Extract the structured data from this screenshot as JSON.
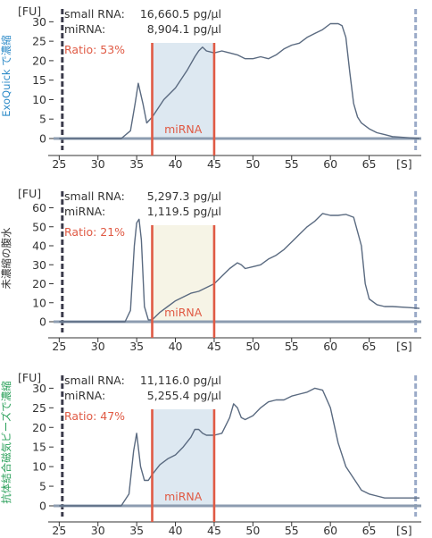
{
  "colors": {
    "trace": "#5a6a80",
    "axis": "#8c9cb0",
    "leftmarker": "#3a3a4a",
    "rightmarker": "#9aaac8",
    "window_line": "#e05a44",
    "ratio_text": "#e05a44",
    "label_blue": "#2e8bc8",
    "label_black": "#333333",
    "label_green": "#2aa05a",
    "fill_blue": "#dde8f1",
    "fill_cream": "#f6f4e6"
  },
  "chart_data": [
    {
      "type": "line",
      "side_label": "ExoQuick で濃縮",
      "side_label_color": "#2e8bc8",
      "yunit": "[FU]",
      "xunit": "[S]",
      "xlim": [
        24.5,
        71.5
      ],
      "ylim": [
        0,
        31
      ],
      "xticks": [
        25,
        30,
        35,
        40,
        45,
        50,
        55,
        60,
        65
      ],
      "yticks": [
        0,
        5,
        10,
        15,
        20,
        25,
        30
      ],
      "left_marker_x": 25.4,
      "right_marker_x": 71.0,
      "window": [
        37,
        45
      ],
      "window_fill": "#dde8f1",
      "window_label": "miRNA",
      "annotations": [
        {
          "label": "small RNA:",
          "value": "16,660.5 pg/μl"
        },
        {
          "label": "miRNA:",
          "value": "8,904.1 pg/μl"
        }
      ],
      "ratio": "Ratio: 53%",
      "series": [
        {
          "x": [
            25,
            33,
            34.2,
            34.8,
            35.2,
            35.8,
            36.3,
            37,
            37.5,
            38.5,
            40,
            41.5,
            42.5,
            43,
            43.5,
            44,
            45,
            46,
            47,
            48,
            49,
            50,
            51,
            52,
            53,
            54,
            55,
            56,
            57,
            58,
            59,
            60,
            61,
            61.5,
            62,
            62.5,
            63,
            63.5,
            64,
            65,
            66,
            67,
            68,
            70,
            71.5
          ],
          "y": [
            0,
            0,
            2,
            9,
            14.2,
            9,
            4,
            5.5,
            7,
            10,
            13,
            17.5,
            21,
            22.5,
            23.5,
            22.5,
            22,
            22.5,
            22,
            21.5,
            20.5,
            20.5,
            21,
            20.5,
            21.5,
            23,
            24,
            24.5,
            26,
            27,
            28,
            29.5,
            29.5,
            29,
            26,
            17,
            9,
            5.5,
            4,
            2.5,
            1.5,
            1,
            0.5,
            0.2,
            0
          ]
        }
      ]
    },
    {
      "type": "line",
      "side_label": "未濃縮の腹水",
      "side_label_color": "#333333",
      "yunit": "[FU]",
      "xunit": "[S]",
      "xlim": [
        24.5,
        71.5
      ],
      "ylim": [
        0,
        64
      ],
      "xticks": [
        25,
        30,
        35,
        40,
        45,
        50,
        55,
        60,
        65
      ],
      "yticks": [
        0,
        10,
        20,
        30,
        40,
        50,
        60
      ],
      "left_marker_x": 25.4,
      "right_marker_x": 71.0,
      "window": [
        37,
        45
      ],
      "window_fill": "#f6f4e6",
      "window_label": "miRNA",
      "annotations": [
        {
          "label": "small RNA:",
          "value": "5,297.3 pg/μl"
        },
        {
          "label": "miRNA:",
          "value": "1,119.5 pg/μl"
        }
      ],
      "ratio": "Ratio: 21%",
      "series": [
        {
          "x": [
            25,
            33.5,
            34.2,
            34.7,
            35.0,
            35.3,
            35.6,
            36,
            36.5,
            37,
            38,
            39,
            40,
            41,
            42,
            43,
            44,
            45,
            46,
            47,
            48,
            48.5,
            49,
            50,
            51,
            52,
            53,
            54,
            55,
            56,
            57,
            58,
            59,
            60,
            61,
            62,
            63,
            64,
            64.5,
            65,
            66,
            67,
            68,
            70,
            71.5
          ],
          "y": [
            0,
            0,
            6,
            40,
            52,
            54,
            43,
            8,
            1,
            1,
            5,
            8,
            11,
            13,
            15,
            16,
            18,
            20,
            24,
            28,
            31,
            30,
            28,
            29,
            30,
            33,
            35,
            38,
            42,
            46,
            50,
            53,
            57,
            56,
            56,
            56.5,
            55,
            40,
            20,
            12,
            9,
            8,
            8,
            7.5,
            7
          ]
        }
      ]
    },
    {
      "type": "line",
      "side_label": "抗体結合磁気ビーズで濃縮",
      "side_label_color": "#2aa05a",
      "yunit": "[FU]",
      "xunit": "[S]",
      "xlim": [
        24.5,
        71.5
      ],
      "ylim": [
        0,
        31
      ],
      "xticks": [
        25,
        30,
        35,
        40,
        45,
        50,
        55,
        60,
        65
      ],
      "yticks": [
        0,
        5,
        10,
        15,
        20,
        25,
        30
      ],
      "left_marker_x": 25.4,
      "right_marker_x": 71.0,
      "window": [
        37,
        45
      ],
      "window_fill": "#dde8f1",
      "window_label": "miRNA",
      "annotations": [
        {
          "label": "small RNA:",
          "value": "11,116.0 pg/μl"
        },
        {
          "label": "miRNA:",
          "value": "5,255.4 pg/μl"
        }
      ],
      "ratio": "Ratio: 47%",
      "series": [
        {
          "x": [
            25,
            33,
            34,
            34.6,
            35,
            35.5,
            36,
            36.5,
            37,
            38,
            39,
            40,
            41,
            42,
            42.5,
            43,
            43.5,
            44,
            45,
            46,
            47,
            47.5,
            48,
            48.5,
            49,
            50,
            51,
            52,
            53,
            54,
            55,
            56,
            57,
            58,
            59,
            60,
            61,
            62,
            63,
            63.5,
            64,
            65,
            66,
            67,
            68,
            70,
            71.5
          ],
          "y": [
            0,
            0,
            3,
            14,
            18.5,
            10,
            6.5,
            6.5,
            8,
            10.5,
            12,
            13,
            15,
            17.5,
            19.5,
            19.5,
            18.5,
            18,
            18,
            18.5,
            22.5,
            26,
            25,
            22.5,
            22,
            23,
            25,
            26.5,
            27,
            27,
            28,
            28.5,
            29,
            30,
            29.5,
            25,
            16,
            10,
            7,
            5.5,
            4,
            3,
            2.5,
            2,
            2,
            2,
            2
          ]
        }
      ]
    }
  ]
}
